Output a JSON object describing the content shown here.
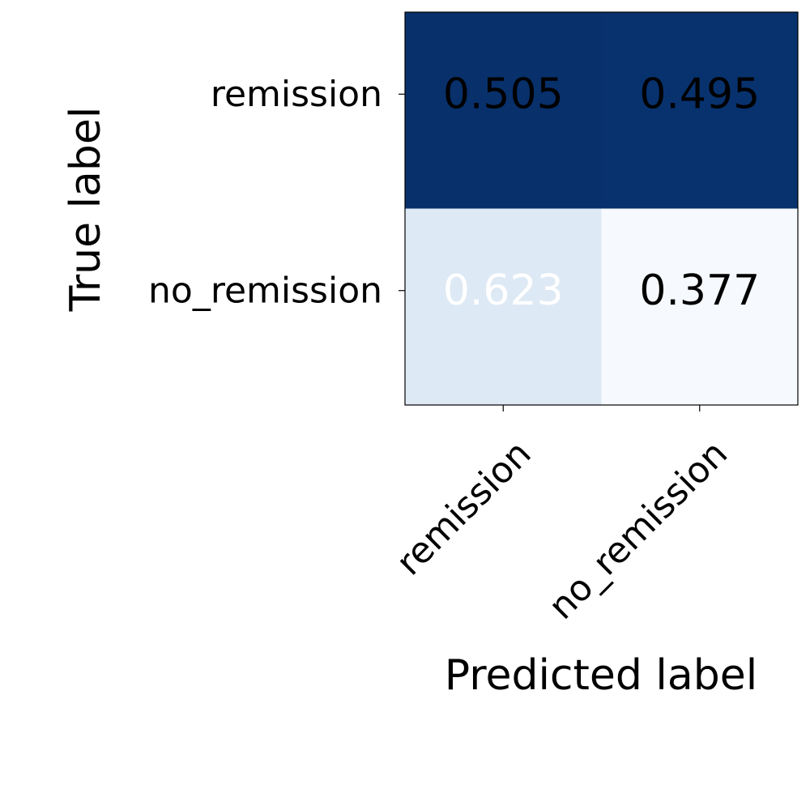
{
  "chart_data": {
    "type": "heatmap",
    "title": "",
    "xlabel": "Predicted label",
    "ylabel": "True label",
    "x_categories": [
      "remission",
      "no_remission"
    ],
    "y_categories": [
      "remission",
      "no_remission"
    ],
    "values": [
      [
        0.505,
        0.495
      ],
      [
        0.623,
        0.377
      ]
    ],
    "value_labels": [
      [
        "0.505",
        "0.495"
      ],
      [
        "0.623",
        "0.377"
      ]
    ],
    "cell_colors": [
      [
        "#08306b",
        "#08326e"
      ],
      [
        "#dde9f5",
        "#f6faff"
      ]
    ],
    "text_colors": [
      [
        "#000000",
        "#000000"
      ],
      [
        "#ffffff",
        "#000000"
      ]
    ],
    "colormap": "Blues",
    "grid": false,
    "legend": "none"
  }
}
